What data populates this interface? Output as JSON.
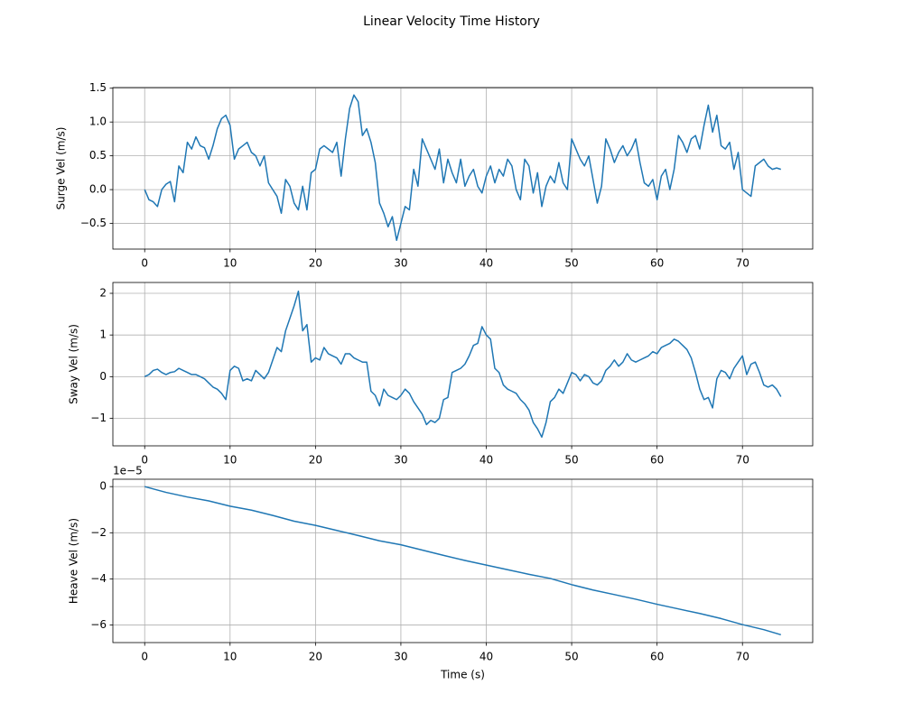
{
  "title": "Linear Velocity Time History",
  "chart_data": [
    {
      "type": "line",
      "ylabel": "Surge Vel (m/s)",
      "color": "#1f77b4",
      "grid": true,
      "xlim": [
        -3.725,
        78.225
      ],
      "xticks": [
        0,
        10,
        20,
        30,
        40,
        50,
        60,
        70
      ],
      "ylim": [
        -0.88,
        1.51
      ],
      "yticks": [
        {
          "value": -0.5,
          "label": "−0.5"
        },
        {
          "value": 0,
          "label": "0.0"
        },
        0.5,
        {
          "value": 1,
          "label": "1.0"
        },
        1.5
      ],
      "x": [
        0,
        0.5,
        1,
        1.5,
        2,
        2.5,
        3,
        3.5,
        4,
        4.5,
        5,
        5.5,
        6,
        6.5,
        7,
        7.5,
        8,
        8.5,
        9,
        9.5,
        10,
        10.5,
        11,
        11.5,
        12,
        12.5,
        13,
        13.5,
        14,
        14.5,
        15,
        15.5,
        16,
        16.5,
        17,
        17.5,
        18,
        18.5,
        19,
        19.5,
        20,
        20.5,
        21,
        21.5,
        22,
        22.5,
        23,
        23.5,
        24,
        24.5,
        25,
        25.5,
        26,
        26.5,
        27,
        27.5,
        28,
        28.5,
        29,
        29.5,
        30,
        30.5,
        31,
        31.5,
        32,
        32.5,
        33,
        33.5,
        34,
        34.5,
        35,
        35.5,
        36,
        36.5,
        37,
        37.5,
        38,
        38.5,
        39,
        39.5,
        40,
        40.5,
        41,
        41.5,
        42,
        42.5,
        43,
        43.5,
        44,
        44.5,
        45,
        45.5,
        46,
        46.5,
        47,
        47.5,
        48,
        48.5,
        49,
        49.5,
        50,
        50.5,
        51,
        51.5,
        52,
        52.5,
        53,
        53.5,
        54,
        54.5,
        55,
        55.5,
        56,
        56.5,
        57,
        57.5,
        58,
        58.5,
        59,
        59.5,
        60,
        60.5,
        61,
        61.5,
        62,
        62.5,
        63,
        63.5,
        64,
        64.5,
        65,
        65.5,
        66,
        66.5,
        67,
        67.5,
        68,
        68.5,
        69,
        69.5,
        70,
        70.5,
        71,
        71.5,
        72,
        72.5,
        73,
        73.5,
        74,
        74.5
      ],
      "values": [
        0,
        -0.15,
        -0.18,
        -0.25,
        0.0,
        0.08,
        0.12,
        -0.18,
        0.35,
        0.25,
        0.7,
        0.6,
        0.78,
        0.65,
        0.62,
        0.45,
        0.65,
        0.9,
        1.05,
        1.1,
        0.95,
        0.45,
        0.6,
        0.65,
        0.7,
        0.55,
        0.5,
        0.35,
        0.5,
        0.1,
        0.0,
        -0.1,
        -0.35,
        0.15,
        0.05,
        -0.2,
        -0.3,
        0.05,
        -0.3,
        0.25,
        0.3,
        0.6,
        0.65,
        0.6,
        0.55,
        0.7,
        0.2,
        0.75,
        1.2,
        1.4,
        1.3,
        0.8,
        0.9,
        0.7,
        0.4,
        -0.2,
        -0.35,
        -0.55,
        -0.4,
        -0.75,
        -0.5,
        -0.25,
        -0.3,
        0.3,
        0.05,
        0.75,
        0.6,
        0.45,
        0.3,
        0.6,
        0.1,
        0.45,
        0.25,
        0.1,
        0.45,
        0.05,
        0.2,
        0.3,
        0.05,
        -0.05,
        0.2,
        0.35,
        0.1,
        0.3,
        0.2,
        0.45,
        0.35,
        0.0,
        -0.15,
        0.45,
        0.35,
        -0.05,
        0.25,
        -0.25,
        0.05,
        0.2,
        0.1,
        0.4,
        0.1,
        0.0,
        0.75,
        0.6,
        0.45,
        0.35,
        0.5,
        0.15,
        -0.2,
        0.05,
        0.75,
        0.6,
        0.4,
        0.55,
        0.65,
        0.5,
        0.6,
        0.75,
        0.4,
        0.1,
        0.05,
        0.15,
        -0.15,
        0.2,
        0.3,
        0.0,
        0.3,
        0.8,
        0.7,
        0.55,
        0.75,
        0.8,
        0.6,
        0.95,
        1.25,
        0.85,
        1.1,
        0.65,
        0.6,
        0.7,
        0.3,
        0.55,
        0.0,
        -0.05,
        -0.1,
        0.35,
        0.4,
        0.45,
        0.35,
        0.3,
        0.32,
        0.3
      ]
    },
    {
      "type": "line",
      "ylabel": "Sway Vel (m/s)",
      "color": "#1f77b4",
      "grid": true,
      "xlim": [
        -3.725,
        78.225
      ],
      "xticks": [
        0,
        10,
        20,
        30,
        40,
        50,
        60,
        70
      ],
      "ylim": [
        -1.66,
        2.26
      ],
      "yticks": [
        {
          "value": -1,
          "label": "−1"
        },
        0,
        1,
        2
      ],
      "x": [
        0,
        0.5,
        1,
        1.5,
        2,
        2.5,
        3,
        3.5,
        4,
        4.5,
        5,
        5.5,
        6,
        6.5,
        7,
        7.5,
        8,
        8.5,
        9,
        9.5,
        10,
        10.5,
        11,
        11.5,
        12,
        12.5,
        13,
        13.5,
        14,
        14.5,
        15,
        15.5,
        16,
        16.5,
        17,
        17.5,
        18,
        18.5,
        19,
        19.5,
        20,
        20.5,
        21,
        21.5,
        22,
        22.5,
        23,
        23.5,
        24,
        24.5,
        25,
        25.5,
        26,
        26.5,
        27,
        27.5,
        28,
        28.5,
        29,
        29.5,
        30,
        30.5,
        31,
        31.5,
        32,
        32.5,
        33,
        33.5,
        34,
        34.5,
        35,
        35.5,
        36,
        36.5,
        37,
        37.5,
        38,
        38.5,
        39,
        39.5,
        40,
        40.5,
        41,
        41.5,
        42,
        42.5,
        43,
        43.5,
        44,
        44.5,
        45,
        45.5,
        46,
        46.5,
        47,
        47.5,
        48,
        48.5,
        49,
        49.5,
        50,
        50.5,
        51,
        51.5,
        52,
        52.5,
        53,
        53.5,
        54,
        54.5,
        55,
        55.5,
        56,
        56.5,
        57,
        57.5,
        58,
        58.5,
        59,
        59.5,
        60,
        60.5,
        61,
        61.5,
        62,
        62.5,
        63,
        63.5,
        64,
        64.5,
        65,
        65.5,
        66,
        66.5,
        67,
        67.5,
        68,
        68.5,
        69,
        69.5,
        70,
        70.5,
        71,
        71.5,
        72,
        72.5,
        73,
        73.5,
        74,
        74.5
      ],
      "values": [
        0,
        0.05,
        0.15,
        0.18,
        0.1,
        0.05,
        0.1,
        0.12,
        0.2,
        0.15,
        0.1,
        0.05,
        0.05,
        0.0,
        -0.05,
        -0.15,
        -0.25,
        -0.3,
        -0.4,
        -0.55,
        0.15,
        0.25,
        0.2,
        -0.1,
        -0.05,
        -0.1,
        0.15,
        0.05,
        -0.05,
        0.1,
        0.4,
        0.7,
        0.6,
        1.1,
        1.4,
        1.7,
        2.05,
        1.1,
        1.25,
        0.35,
        0.45,
        0.4,
        0.7,
        0.55,
        0.5,
        0.45,
        0.3,
        0.55,
        0.55,
        0.45,
        0.4,
        0.35,
        0.35,
        -0.35,
        -0.45,
        -0.7,
        -0.3,
        -0.45,
        -0.5,
        -0.55,
        -0.45,
        -0.3,
        -0.4,
        -0.6,
        -0.75,
        -0.9,
        -1.15,
        -1.05,
        -1.1,
        -1.0,
        -0.55,
        -0.5,
        0.1,
        0.15,
        0.2,
        0.3,
        0.5,
        0.75,
        0.8,
        1.2,
        1.0,
        0.9,
        0.2,
        0.1,
        -0.2,
        -0.3,
        -0.35,
        -0.4,
        -0.55,
        -0.65,
        -0.8,
        -1.1,
        -1.25,
        -1.45,
        -1.1,
        -0.6,
        -0.5,
        -0.3,
        -0.4,
        -0.15,
        0.1,
        0.05,
        -0.1,
        0.05,
        0.0,
        -0.15,
        -0.2,
        -0.1,
        0.15,
        0.25,
        0.4,
        0.25,
        0.35,
        0.55,
        0.4,
        0.35,
        0.4,
        0.45,
        0.5,
        0.6,
        0.55,
        0.7,
        0.75,
        0.8,
        0.9,
        0.85,
        0.75,
        0.65,
        0.45,
        0.1,
        -0.3,
        -0.55,
        -0.5,
        -0.75,
        -0.05,
        0.15,
        0.1,
        -0.05,
        0.2,
        0.35,
        0.5,
        0.05,
        0.3,
        0.35,
        0.1,
        -0.2,
        -0.25,
        -0.2,
        -0.3,
        -0.48
      ]
    },
    {
      "type": "line",
      "ylabel": "Heave Vel (m/s)",
      "xlabel": "Time (s)",
      "offset_label": "1e−5",
      "color": "#1f77b4",
      "grid": true,
      "xlim": [
        -3.725,
        78.225
      ],
      "xticks": [
        0,
        10,
        20,
        30,
        40,
        50,
        60,
        70
      ],
      "ylim": [
        -6.76,
        0.32
      ],
      "yticks": [
        {
          "value": -6,
          "label": "−6"
        },
        {
          "value": -4,
          "label": "−4"
        },
        {
          "value": -2,
          "label": "−2"
        },
        0
      ],
      "x": [
        0,
        2.5,
        5,
        7.5,
        10,
        12.5,
        15,
        17.5,
        20,
        22.5,
        25,
        27.5,
        30,
        32.5,
        35,
        37.5,
        40,
        42.5,
        45,
        47.5,
        50,
        52.5,
        55,
        57.5,
        60,
        62.5,
        65,
        67.5,
        70,
        72.5,
        74.5
      ],
      "values": [
        0,
        -0.25,
        -0.45,
        -0.62,
        -0.85,
        -1.02,
        -1.25,
        -1.5,
        -1.68,
        -1.9,
        -2.12,
        -2.35,
        -2.52,
        -2.75,
        -2.98,
        -3.2,
        -3.4,
        -3.6,
        -3.8,
        -3.98,
        -4.25,
        -4.48,
        -4.68,
        -4.88,
        -5.1,
        -5.3,
        -5.5,
        -5.72,
        -5.98,
        -6.2,
        -6.42
      ]
    }
  ]
}
